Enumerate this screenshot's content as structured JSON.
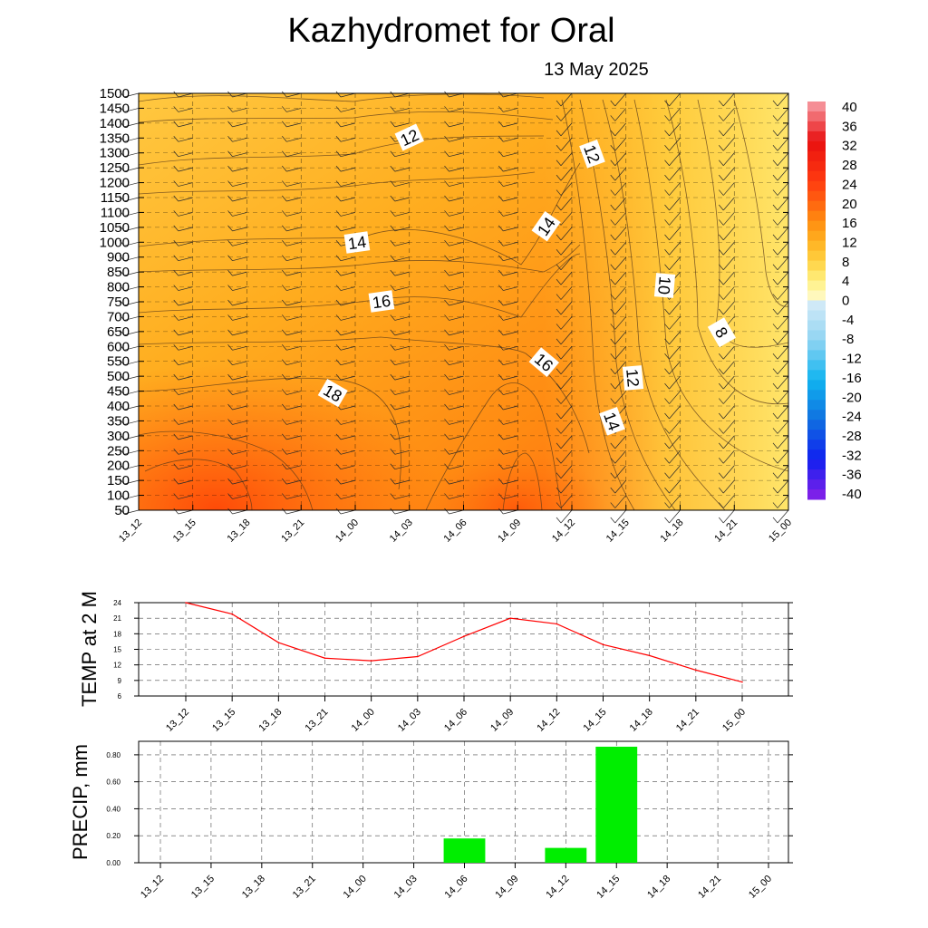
{
  "title": "Kazhydromet  for Oral",
  "subtitle": "13 May 2025",
  "time_labels": [
    "13_12",
    "13_15",
    "13_18",
    "13_21",
    "14_00",
    "14_03",
    "14_06",
    "14_09",
    "14_12",
    "14_15",
    "14_18",
    "14_21",
    "15_00"
  ],
  "colors": {
    "temp_line": "#ff0000",
    "precip_bar": "#00ee00",
    "grid": "#000000"
  },
  "chart_data": [
    {
      "type": "heatmap",
      "name": "temperature-profile",
      "x": [
        "13_12",
        "13_15",
        "13_18",
        "13_21",
        "14_00",
        "14_03",
        "14_06",
        "14_09",
        "14_12",
        "14_15",
        "14_18",
        "14_21",
        "15_00"
      ],
      "y_ticks": [
        50,
        100,
        150,
        200,
        250,
        300,
        350,
        400,
        450,
        500,
        550,
        600,
        650,
        700,
        750,
        800,
        850,
        900,
        1000,
        1050,
        1100,
        1150,
        1200,
        1250,
        1300,
        1350,
        1400,
        1450,
        1500
      ],
      "colorbar": {
        "ticks": [
          40,
          36,
          32,
          28,
          24,
          20,
          16,
          12,
          8,
          4,
          0,
          -4,
          -8,
          -12,
          -16,
          -20,
          -24,
          -28,
          -32,
          -36,
          -40
        ],
        "range": [
          -40,
          40
        ]
      },
      "contour_labels": [
        "12",
        "12",
        "14",
        "14",
        "16",
        "16",
        "18",
        "10",
        "8",
        "12",
        "14"
      ],
      "grid": true
    },
    {
      "type": "line",
      "name": "temp-2m",
      "ylabel": "TEMP at 2 M",
      "x": [
        "13_12",
        "13_15",
        "13_18",
        "13_21",
        "14_00",
        "14_03",
        "14_06",
        "14_09",
        "14_12",
        "14_15",
        "14_18",
        "14_21",
        "15_00"
      ],
      "y_ticks": [
        "6",
        "9",
        "12",
        "15",
        "18",
        "21",
        "24"
      ],
      "ylim": [
        6,
        24
      ],
      "series": [
        {
          "values": [
            24.0,
            21.8,
            16.3,
            13.3,
            12.8,
            13.6,
            17.5,
            21.0,
            19.9,
            15.9,
            13.8,
            11.0,
            8.7
          ]
        }
      ],
      "grid": true
    },
    {
      "type": "bar",
      "name": "precip",
      "ylabel": "PRECIP, mm",
      "categories": [
        "13_12",
        "13_15",
        "13_18",
        "13_21",
        "14_00",
        "14_03",
        "14_06",
        "14_09",
        "14_12",
        "14_15",
        "14_18",
        "14_21",
        "15_00"
      ],
      "values": [
        0,
        0,
        0,
        0,
        0,
        0,
        0.18,
        0,
        0.11,
        0.86,
        0,
        0,
        0
      ],
      "y_ticks": [
        "0.00",
        "0.20",
        "0.40",
        "0.60",
        "0.80"
      ],
      "ylim": [
        0,
        0.9
      ],
      "grid": true
    }
  ]
}
